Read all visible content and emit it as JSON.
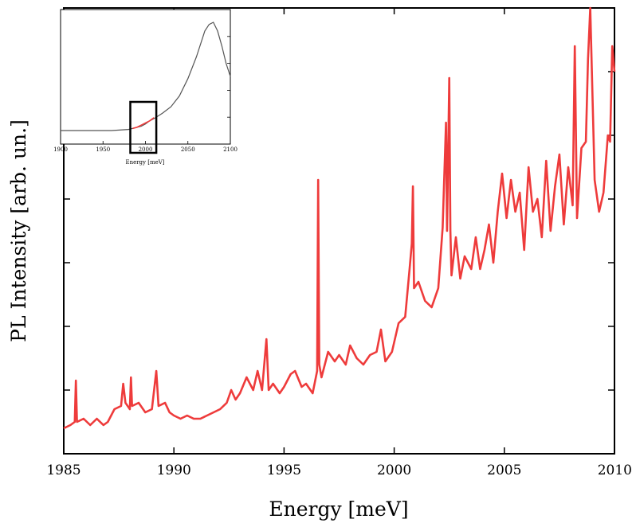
{
  "chart_data": [
    {
      "type": "line",
      "xlabel": "Energy [meV]",
      "ylabel": "PL Intensity [arb. un.]",
      "xlim": [
        1985,
        2010
      ],
      "ylim": [
        0,
        7
      ],
      "x_ticks": [
        "1985",
        "1990",
        "1995",
        "2000",
        "2005",
        "2010"
      ],
      "y_ticks_labeled": false,
      "series_color": "#ee3b3b",
      "series": [
        {
          "x": [
            1985.0,
            1985.3,
            1985.5,
            1985.55,
            1985.6,
            1985.9,
            1986.2,
            1986.5,
            1986.8,
            1987.0,
            1987.3,
            1987.6,
            1987.7,
            1987.8,
            1988.0,
            1988.05,
            1988.1,
            1988.4,
            1988.7,
            1989.0,
            1989.2,
            1989.3,
            1989.6,
            1989.8,
            1990.0,
            1990.3,
            1990.6,
            1990.9,
            1991.2,
            1991.5,
            1991.8,
            1992.1,
            1992.4,
            1992.6,
            1992.8,
            1993.0,
            1993.3,
            1993.6,
            1993.8,
            1994.0,
            1994.2,
            1994.3,
            1994.5,
            1994.8,
            1995.0,
            1995.3,
            1995.5,
            1995.8,
            1996.0,
            1996.3,
            1996.5,
            1996.55,
            1996.6,
            1996.7,
            1997.0,
            1997.3,
            1997.5,
            1997.8,
            1998.0,
            1998.3,
            1998.6,
            1998.9,
            1999.2,
            1999.4,
            1999.6,
            1999.9,
            2000.2,
            2000.5,
            2000.7,
            2000.8,
            2000.85,
            2000.9,
            2001.1,
            2001.4,
            2001.7,
            2002.0,
            2002.2,
            2002.35,
            2002.4,
            2002.5,
            2002.55,
            2002.6,
            2002.8,
            2003.0,
            2003.2,
            2003.5,
            2003.7,
            2003.9,
            2004.1,
            2004.3,
            2004.5,
            2004.7,
            2004.9,
            2005.1,
            2005.3,
            2005.5,
            2005.7,
            2005.9,
            2006.1,
            2006.3,
            2006.5,
            2006.7,
            2006.9,
            2007.1,
            2007.3,
            2007.5,
            2007.7,
            2007.9,
            2008.1,
            2008.2,
            2008.3,
            2008.5,
            2008.7,
            2008.8,
            2008.9,
            2009.1,
            2009.3,
            2009.5,
            2009.7,
            2009.8,
            2009.9,
            2010.0
          ],
          "values": [
            0.4,
            0.45,
            0.5,
            1.15,
            0.5,
            0.55,
            0.45,
            0.55,
            0.45,
            0.5,
            0.7,
            0.75,
            1.1,
            0.8,
            0.7,
            1.2,
            0.75,
            0.8,
            0.65,
            0.7,
            1.3,
            0.75,
            0.8,
            0.65,
            0.6,
            0.55,
            0.6,
            0.55,
            0.55,
            0.6,
            0.65,
            0.7,
            0.8,
            1.0,
            0.85,
            0.95,
            1.2,
            1.0,
            1.3,
            1.0,
            1.8,
            1.0,
            1.1,
            0.95,
            1.05,
            1.25,
            1.3,
            1.05,
            1.1,
            0.95,
            1.3,
            4.3,
            1.4,
            1.2,
            1.6,
            1.45,
            1.55,
            1.4,
            1.7,
            1.5,
            1.4,
            1.55,
            1.6,
            1.95,
            1.45,
            1.6,
            2.05,
            2.15,
            2.9,
            3.3,
            4.2,
            2.6,
            2.7,
            2.4,
            2.3,
            2.6,
            3.55,
            5.2,
            3.5,
            5.9,
            3.5,
            2.8,
            3.4,
            2.75,
            3.1,
            2.9,
            3.4,
            2.9,
            3.2,
            3.6,
            3.0,
            3.8,
            4.4,
            3.7,
            4.3,
            3.8,
            4.1,
            3.2,
            4.5,
            3.8,
            4.0,
            3.4,
            4.6,
            3.5,
            4.2,
            4.7,
            3.6,
            4.5,
            3.9,
            6.4,
            3.7,
            4.8,
            4.9,
            6.2,
            7.0,
            4.3,
            3.8,
            4.1,
            5.0,
            4.9,
            6.4,
            6.0
          ]
        }
      ]
    },
    {
      "type": "line",
      "xlabel": "Energy [meV]",
      "ylabel": "",
      "xlim": [
        1900,
        2100
      ],
      "x_ticks": [
        "1900",
        "1950",
        "2000",
        "2050",
        "2100"
      ],
      "series_colors": [
        "#555555",
        "#ee3b3b"
      ],
      "highlight_range": [
        1985,
        2010
      ],
      "series": [
        {
          "x": [
            1900,
            1930,
            1960,
            1980,
            1985,
            1995,
            2000,
            2005,
            2010,
            2020,
            2030,
            2040,
            2050,
            2060,
            2070,
            2075,
            2080,
            2085,
            2090,
            2095,
            2100
          ],
          "values": [
            0.0,
            0.0,
            0.0,
            0.01,
            0.02,
            0.04,
            0.06,
            0.09,
            0.11,
            0.16,
            0.22,
            0.32,
            0.48,
            0.68,
            0.92,
            0.98,
            1.0,
            0.92,
            0.78,
            0.62,
            0.5
          ]
        },
        {
          "x": [
            1985,
            1990,
            1995,
            2000,
            2005,
            2010
          ],
          "values": [
            0.02,
            0.03,
            0.05,
            0.07,
            0.09,
            0.12
          ]
        }
      ]
    }
  ]
}
